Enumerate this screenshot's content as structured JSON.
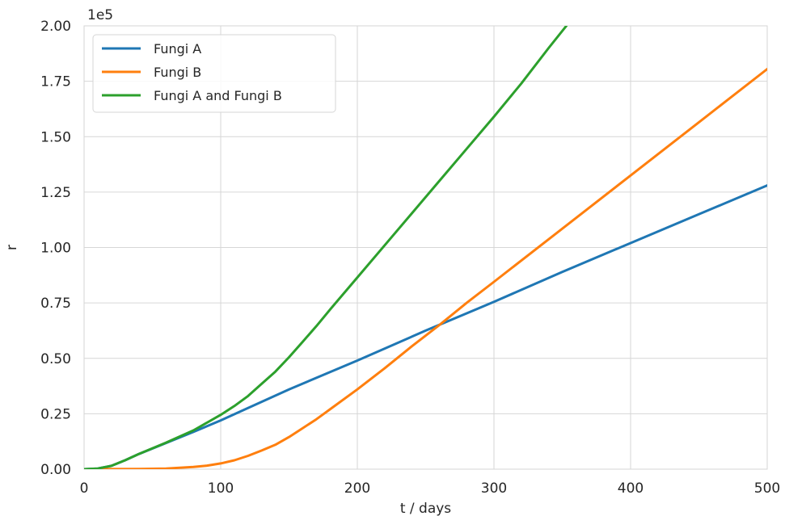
{
  "chart_data": {
    "type": "line",
    "title": "",
    "xlabel": "t / days",
    "ylabel": "r",
    "y_scale_label": "1e5",
    "xlim": [
      0,
      500
    ],
    "ylim": [
      0,
      2.0
    ],
    "grid": true,
    "legend_position": "top-left",
    "x_ticks": [
      0,
      100,
      200,
      300,
      400,
      500
    ],
    "x_tick_labels": [
      "0",
      "100",
      "200",
      "300",
      "400",
      "500"
    ],
    "y_ticks": [
      0,
      0.25,
      0.5,
      0.75,
      1.0,
      1.25,
      1.5,
      1.75,
      2.0
    ],
    "y_tick_labels": [
      "0.00",
      "0.25",
      "0.50",
      "0.75",
      "1.00",
      "1.25",
      "1.50",
      "1.75",
      "2.00"
    ],
    "series": [
      {
        "name": "Fungi A",
        "color": "#1f77b4",
        "x": [
          0,
          10,
          20,
          30,
          40,
          60,
          80,
          100,
          150,
          200,
          250,
          300,
          350,
          400,
          450,
          500
        ],
        "y": [
          0,
          0.003,
          0.015,
          0.04,
          0.068,
          0.118,
          0.168,
          0.22,
          0.36,
          0.49,
          0.625,
          0.755,
          0.89,
          1.02,
          1.15,
          1.28
        ]
      },
      {
        "name": "Fungi B",
        "color": "#ff7f0e",
        "x": [
          0,
          40,
          60,
          80,
          90,
          100,
          110,
          120,
          130,
          140,
          150,
          160,
          170,
          180,
          200,
          220,
          240,
          260,
          280,
          300,
          350,
          400,
          450,
          500
        ],
        "y": [
          0,
          0.001,
          0.003,
          0.01,
          0.016,
          0.026,
          0.04,
          0.06,
          0.084,
          0.11,
          0.145,
          0.185,
          0.225,
          0.27,
          0.36,
          0.455,
          0.555,
          0.65,
          0.75,
          0.845,
          1.085,
          1.325,
          1.565,
          1.805
        ]
      },
      {
        "name": "Fungi A and Fungi B",
        "color": "#2ca02c",
        "x": [
          0,
          10,
          20,
          30,
          40,
          60,
          80,
          100,
          110,
          120,
          130,
          140,
          150,
          160,
          170,
          180,
          200,
          220,
          240,
          260,
          280,
          300,
          320,
          340,
          353
        ],
        "y": [
          0,
          0.003,
          0.015,
          0.04,
          0.068,
          0.12,
          0.175,
          0.245,
          0.285,
          0.33,
          0.385,
          0.44,
          0.505,
          0.575,
          0.645,
          0.72,
          0.865,
          1.01,
          1.155,
          1.3,
          1.445,
          1.59,
          1.74,
          1.9,
          2.0
        ]
      }
    ]
  }
}
